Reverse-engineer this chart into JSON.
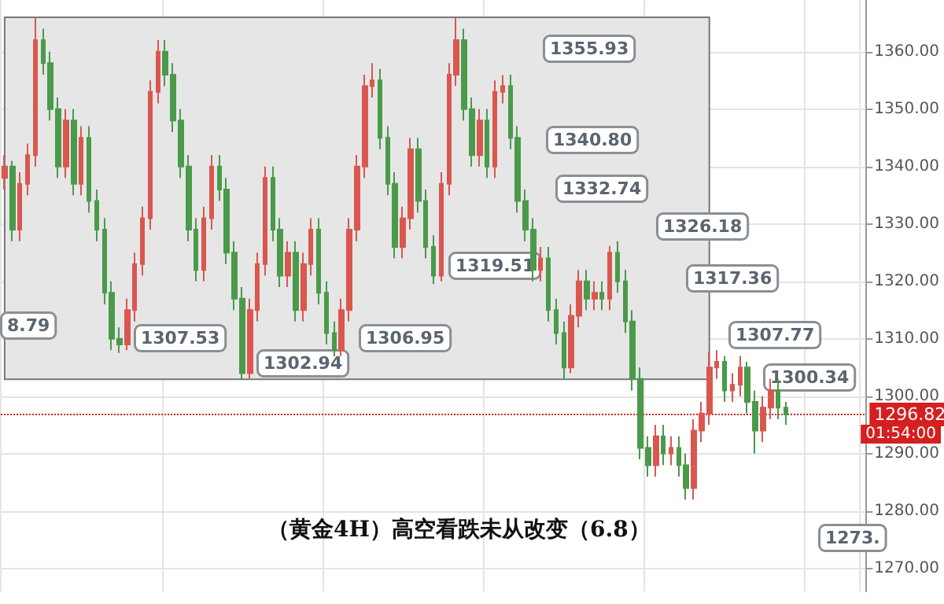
{
  "chart_data": {
    "type": "candlestick",
    "title": "（黄金4H）高空看跌未从改变（6.8）",
    "categories": [
      null,
      null,
      null,
      null,
      null,
      null,
      null,
      null,
      null,
      null,
      null,
      null,
      null,
      null,
      null,
      null,
      null,
      null,
      null,
      null,
      null,
      null,
      null,
      null,
      null,
      null,
      null,
      null,
      null,
      null,
      null,
      null,
      null,
      null,
      null,
      null,
      null,
      null,
      null,
      null,
      null,
      null,
      null,
      null,
      null,
      null,
      null,
      null,
      null,
      null,
      null,
      null,
      null,
      null,
      null,
      null,
      null,
      null,
      null,
      null,
      null,
      null,
      null,
      null,
      null,
      null,
      null,
      null,
      null,
      null,
      null,
      null,
      null,
      null,
      null,
      null,
      null,
      null,
      null,
      null,
      null,
      null,
      null,
      null,
      null,
      null,
      null,
      null,
      null,
      null,
      null,
      null,
      null,
      null,
      null,
      null,
      null,
      null,
      null,
      null,
      null,
      null,
      null,
      null,
      null,
      null,
      null,
      null,
      null,
      null,
      null,
      null,
      null
    ],
    "ohlc": [
      [
        1338,
        1342,
        1336,
        1340
      ],
      [
        1340,
        1341,
        1327,
        1329
      ],
      [
        1329,
        1339,
        1327,
        1337
      ],
      [
        1337,
        1344,
        1335,
        1342
      ],
      [
        1342,
        1366,
        1340,
        1362
      ],
      [
        1362,
        1364,
        1356,
        1358
      ],
      [
        1358,
        1360,
        1348,
        1350
      ],
      [
        1350,
        1352,
        1338,
        1340
      ],
      [
        1340,
        1350,
        1338,
        1348
      ],
      [
        1348,
        1350,
        1335,
        1337
      ],
      [
        1337,
        1347,
        1335,
        1345
      ],
      [
        1345,
        1347,
        1332,
        1334
      ],
      [
        1334,
        1336,
        1327,
        1329
      ],
      [
        1329,
        1331,
        1316,
        1318
      ],
      [
        1318,
        1320,
        1308,
        1310
      ],
      [
        1310,
        1312,
        1307.53,
        1309
      ],
      [
        1309,
        1317,
        1308,
        1315
      ],
      [
        1315,
        1325,
        1313,
        1323
      ],
      [
        1323,
        1333,
        1321,
        1331
      ],
      [
        1331,
        1355,
        1329,
        1353
      ],
      [
        1353,
        1362,
        1351,
        1360
      ],
      [
        1360,
        1362,
        1354,
        1356
      ],
      [
        1356,
        1358,
        1346,
        1348
      ],
      [
        1348,
        1350,
        1338,
        1340
      ],
      [
        1340,
        1342,
        1327,
        1329
      ],
      [
        1329,
        1331,
        1320,
        1322
      ],
      [
        1322,
        1333,
        1320,
        1331
      ],
      [
        1331,
        1342,
        1329,
        1340
      ],
      [
        1340,
        1342,
        1334,
        1336
      ],
      [
        1336,
        1338,
        1323,
        1325
      ],
      [
        1325,
        1327,
        1315,
        1317
      ],
      [
        1317,
        1319,
        1302.94,
        1304
      ],
      [
        1304,
        1317,
        1303,
        1315
      ],
      [
        1315,
        1325,
        1313,
        1323
      ],
      [
        1323,
        1340,
        1321,
        1338
      ],
      [
        1338,
        1340,
        1327,
        1329
      ],
      [
        1329,
        1331,
        1319,
        1321
      ],
      [
        1321,
        1327,
        1319,
        1325
      ],
      [
        1325,
        1327,
        1313,
        1315
      ],
      [
        1315,
        1325,
        1313,
        1323
      ],
      [
        1323,
        1331,
        1321,
        1329
      ],
      [
        1329,
        1331,
        1316,
        1318
      ],
      [
        1318,
        1320,
        1309,
        1311
      ],
      [
        1311,
        1313,
        1306.95,
        1308
      ],
      [
        1308,
        1317,
        1307,
        1315
      ],
      [
        1315,
        1331,
        1313,
        1329
      ],
      [
        1329,
        1342,
        1327,
        1340
      ],
      [
        1340,
        1356,
        1338,
        1354
      ],
      [
        1354,
        1358,
        1352,
        1355
      ],
      [
        1355,
        1357,
        1343,
        1345
      ],
      [
        1345,
        1347,
        1335,
        1337
      ],
      [
        1337,
        1339,
        1324,
        1326
      ],
      [
        1326,
        1333,
        1324,
        1331
      ],
      [
        1331,
        1345,
        1329,
        1343
      ],
      [
        1343,
        1345,
        1332,
        1334
      ],
      [
        1334,
        1336,
        1324,
        1326
      ],
      [
        1326,
        1328,
        1319.51,
        1321
      ],
      [
        1321,
        1339,
        1320,
        1337
      ],
      [
        1337,
        1358,
        1335,
        1356
      ],
      [
        1356,
        1366,
        1354,
        1362
      ],
      [
        1362,
        1364,
        1348,
        1350
      ],
      [
        1350,
        1352,
        1340,
        1342
      ],
      [
        1342,
        1350,
        1340,
        1348
      ],
      [
        1348,
        1350,
        1338,
        1340
      ],
      [
        1340,
        1355,
        1338,
        1353
      ],
      [
        1353,
        1355.93,
        1351,
        1354
      ],
      [
        1354,
        1356,
        1343,
        1345
      ],
      [
        1345,
        1347,
        1332,
        1334
      ],
      [
        1334,
        1336,
        1327,
        1329
      ],
      [
        1329,
        1331,
        1320,
        1322
      ],
      [
        1322,
        1326,
        1320,
        1324
      ],
      [
        1324,
        1326,
        1313,
        1315
      ],
      [
        1315,
        1317,
        1309,
        1311
      ],
      [
        1311,
        1313,
        1303,
        1305
      ],
      [
        1305,
        1316,
        1304,
        1314
      ],
      [
        1314,
        1322,
        1312,
        1320
      ],
      [
        1320,
        1322,
        1315,
        1317
      ],
      [
        1317,
        1320,
        1315,
        1318
      ],
      [
        1318,
        1320,
        1315,
        1317
      ],
      [
        1317,
        1326.18,
        1315,
        1325
      ],
      [
        1325,
        1327,
        1318,
        1320
      ],
      [
        1320,
        1322,
        1311,
        1313
      ],
      [
        1313,
        1315,
        1301,
        1303
      ],
      [
        1303,
        1305,
        1289,
        1291
      ],
      [
        1291,
        1293,
        1286,
        1288
      ],
      [
        1288,
        1295,
        1286,
        1293
      ],
      [
        1293,
        1295,
        1288,
        1290
      ],
      [
        1290,
        1293,
        1288,
        1291
      ],
      [
        1291,
        1293,
        1286,
        1288
      ],
      [
        1288,
        1290,
        1282,
        1284
      ],
      [
        1284,
        1296,
        1282,
        1294
      ],
      [
        1294,
        1299,
        1292,
        1297
      ],
      [
        1297,
        1307.77,
        1295,
        1305
      ],
      [
        1305,
        1308,
        1303,
        1306
      ],
      [
        1306,
        1307,
        1299,
        1301
      ],
      [
        1301,
        1304,
        1299,
        1302
      ],
      [
        1302,
        1307,
        1300,
        1305
      ],
      [
        1305,
        1306,
        1297,
        1299
      ],
      [
        1299,
        1301,
        1290,
        1294
      ],
      [
        1294,
        1300,
        1292,
        1298
      ],
      [
        1298,
        1303,
        1296,
        1301
      ],
      [
        1301,
        1303,
        1296,
        1298
      ],
      [
        1298,
        1299,
        1295,
        1296.82
      ],
      null,
      null,
      null,
      null,
      null,
      null,
      null,
      null,
      null,
      null
    ],
    "ylim": [
      1266,
      1369
    ],
    "yticks": [
      {
        "value": 1270,
        "label": "1270.00"
      },
      {
        "value": 1280,
        "label": "1280.00"
      },
      {
        "value": 1290,
        "label": "1290.00"
      },
      {
        "value": 1300,
        "label": "1300.00"
      },
      {
        "value": 1310,
        "label": "1310.00"
      },
      {
        "value": 1320,
        "label": "1320.00"
      },
      {
        "value": 1330,
        "label": "1330.00"
      },
      {
        "value": 1340,
        "label": "1340.00"
      },
      {
        "value": 1350,
        "label": "1350.00"
      },
      {
        "value": 1360,
        "label": "1360.00"
      }
    ],
    "grid": true,
    "bands": [
      {
        "axis": "y",
        "from": 1302.94,
        "to": 1366,
        "color": "#e6e6e6"
      }
    ],
    "ref_lines": [
      {
        "axis": "y",
        "value": 1296.82,
        "label": "1296.82",
        "color": "#d42020",
        "line_style": "dotted"
      }
    ],
    "annotations": [
      "8.79",
      "1307.53",
      "1302.94",
      "1306.95",
      "1319.51",
      "1355.93",
      "1340.80",
      "1332.74",
      "1326.18",
      "1317.36",
      "1307.77",
      "1300.34",
      "1273.",
      "01:54:00"
    ]
  }
}
